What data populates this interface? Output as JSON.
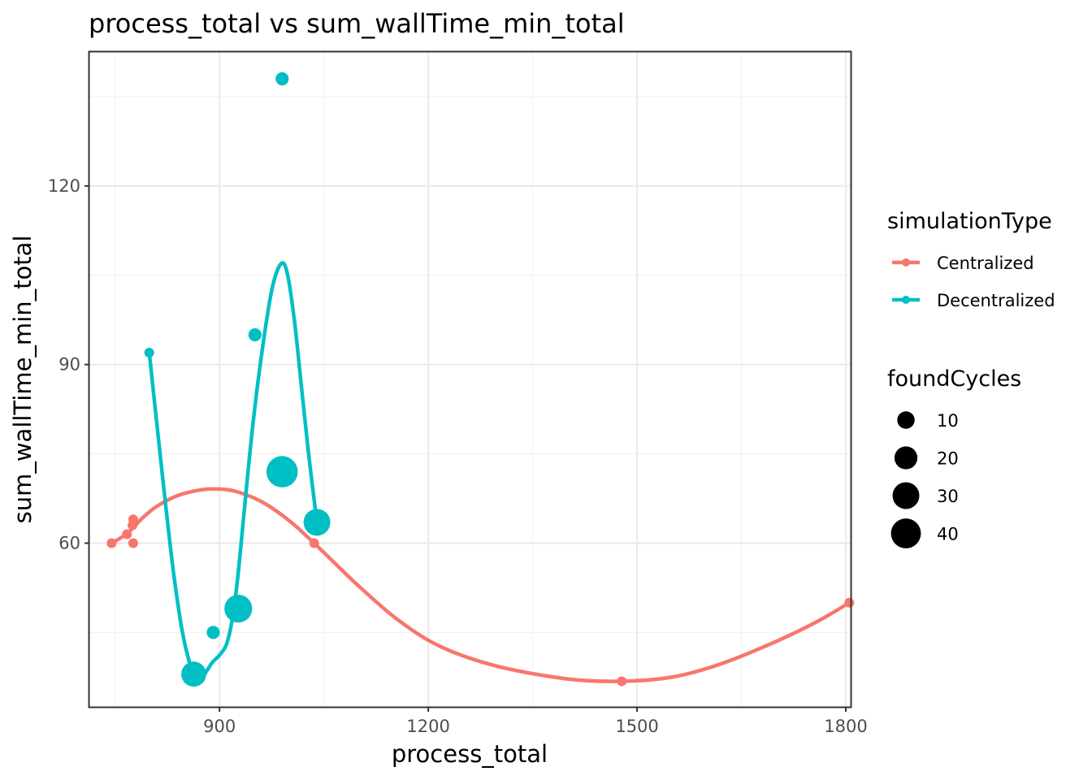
{
  "chart_data": {
    "type": "scatter",
    "title": "process_total  vs  sum_wallTime_min_total",
    "xlabel": "process_total",
    "ylabel": "sum_wallTime_min_total",
    "xlim": [
      713,
      1807
    ],
    "ylim": [
      32.5,
      142.5
    ],
    "x_ticks": [
      900,
      1200,
      1500,
      1800
    ],
    "x_tick_labels": [
      "900",
      "1200",
      "1500",
      "1800"
    ],
    "y_ticks": [
      60,
      90,
      120
    ],
    "y_tick_labels": [
      "60",
      "90",
      "120"
    ],
    "grid": true,
    "legend_position": "right",
    "color_legend": {
      "title": "simulationType",
      "entries": [
        {
          "label": "Centralized",
          "color": "#F8766D"
        },
        {
          "label": "Decentralized",
          "color": "#00BFC4"
        }
      ]
    },
    "size_legend": {
      "title": "foundCycles",
      "entries": [
        {
          "label": "10",
          "value": 10
        },
        {
          "label": "20",
          "value": 20
        },
        {
          "label": "30",
          "value": 30
        },
        {
          "label": "40",
          "value": 40
        }
      ]
    },
    "series": [
      {
        "name": "Centralized",
        "color": "#F8766D",
        "points": [
          {
            "x": 745,
            "y": 60,
            "size": 1
          },
          {
            "x": 767,
            "y": 61.5,
            "size": 1
          },
          {
            "x": 775,
            "y": 63,
            "size": 1
          },
          {
            "x": 776,
            "y": 64,
            "size": 1
          },
          {
            "x": 776,
            "y": 60,
            "size": 1
          },
          {
            "x": 1036,
            "y": 60,
            "size": 1
          },
          {
            "x": 1478,
            "y": 36.8,
            "size": 1
          },
          {
            "x": 1805,
            "y": 50,
            "size": 1
          }
        ],
        "smooth": [
          [
            745,
            60
          ],
          [
            767,
            61.6
          ],
          [
            790,
            64.3
          ],
          [
            810,
            66.2
          ],
          [
            840,
            68
          ],
          [
            870,
            68.9
          ],
          [
            890,
            69.1
          ],
          [
            920,
            68.8
          ],
          [
            960,
            67
          ],
          [
            1000,
            63.8
          ],
          [
            1036,
            60
          ],
          [
            1100,
            52.8
          ],
          [
            1160,
            46.8
          ],
          [
            1220,
            42.5
          ],
          [
            1300,
            39.3
          ],
          [
            1400,
            37.2
          ],
          [
            1478,
            36.8
          ],
          [
            1550,
            37.5
          ],
          [
            1620,
            39.7
          ],
          [
            1700,
            43.5
          ],
          [
            1760,
            46.9
          ],
          [
            1805,
            50
          ]
        ]
      },
      {
        "name": "Decentralized",
        "color": "#00BFC4",
        "points": [
          {
            "x": 799,
            "y": 92,
            "size": 5
          },
          {
            "x": 863,
            "y": 38,
            "size": 25
          },
          {
            "x": 891,
            "y": 45,
            "size": 6
          },
          {
            "x": 927,
            "y": 49,
            "size": 33
          },
          {
            "x": 951,
            "y": 95,
            "size": 6
          },
          {
            "x": 990,
            "y": 138,
            "size": 6
          },
          {
            "x": 990,
            "y": 72,
            "size": 45
          },
          {
            "x": 1040,
            "y": 63.5,
            "size": 30
          }
        ],
        "smooth": [
          [
            799,
            92
          ],
          [
            810,
            80
          ],
          [
            822,
            67
          ],
          [
            834,
            55
          ],
          [
            846,
            45.5
          ],
          [
            858,
            39.5
          ],
          [
            866,
            37.5
          ],
          [
            874,
            37.3
          ],
          [
            882,
            38.6
          ],
          [
            890,
            40
          ],
          [
            900,
            41.2
          ],
          [
            910,
            43
          ],
          [
            918,
            47
          ],
          [
            926,
            54
          ],
          [
            936,
            66
          ],
          [
            948,
            80
          ],
          [
            962,
            93
          ],
          [
            976,
            103
          ],
          [
            989,
            107
          ],
          [
            998,
            105
          ],
          [
            1008,
            97
          ],
          [
            1018,
            86
          ],
          [
            1028,
            75
          ],
          [
            1040,
            63.5
          ]
        ]
      }
    ]
  }
}
